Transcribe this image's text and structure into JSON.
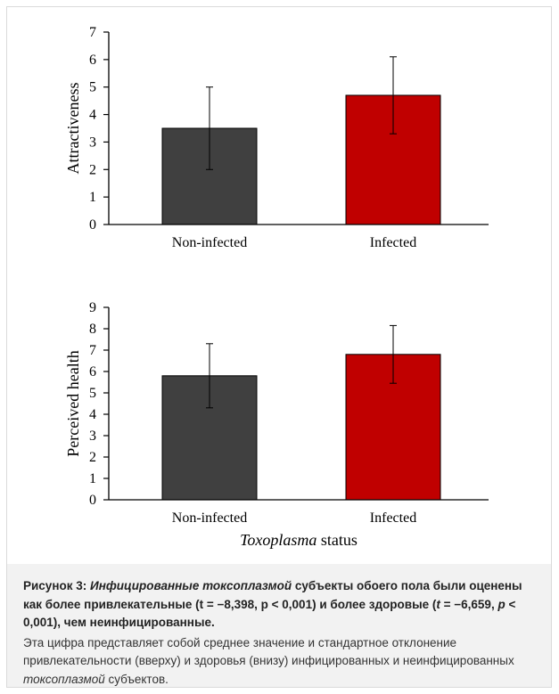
{
  "figure": {
    "background": "#ffffff",
    "frame_color": "#f2f2f2"
  },
  "chart_data": [
    {
      "type": "bar",
      "panel": "top",
      "categories": [
        "Non-infected",
        "Infected"
      ],
      "values": [
        3.5,
        4.7
      ],
      "error": [
        1.5,
        1.4
      ],
      "colors": [
        "#404040",
        "#c00000"
      ],
      "ylabel": "Attractiveness",
      "xlabel": "",
      "ylim": [
        0,
        7
      ],
      "yticks": [
        "0",
        "1",
        "2",
        "3",
        "4",
        "5",
        "6",
        "7"
      ],
      "grid": false
    },
    {
      "type": "bar",
      "panel": "bottom",
      "categories": [
        "Non-infected",
        "Infected"
      ],
      "values": [
        5.8,
        6.8
      ],
      "error": [
        1.5,
        1.35
      ],
      "colors": [
        "#404040",
        "#c00000"
      ],
      "ylabel": "Perceived health",
      "xlabel_italic": "Toxoplasma",
      "xlabel_rest": " status",
      "ylim": [
        0,
        9
      ],
      "yticks": [
        "0",
        "1",
        "2",
        "3",
        "4",
        "5",
        "6",
        "7",
        "8",
        "9"
      ],
      "grid": false
    }
  ],
  "caption": {
    "prefix": "Рисунок 3: ",
    "italic_term": "Инфицированные токсоплазмой",
    "line1_rest": " субъекты обоего пола были оценены как более привлекательные (t = −8,398, p < 0,001) и более здоровые (",
    "t2": "t",
    "t2_value": " = −6,659, ",
    "p2": "p",
    "p2_value": " < 0,001), чем неинфицированные.",
    "body_text": "Эта цифра представляет собой среднее значение и стандартное отклонение привлекательности (вверху) и здоровья (внизу) инфицированных и неинфицированных ",
    "body_italic": "токсоплазмой",
    "body_end": " субъектов."
  }
}
